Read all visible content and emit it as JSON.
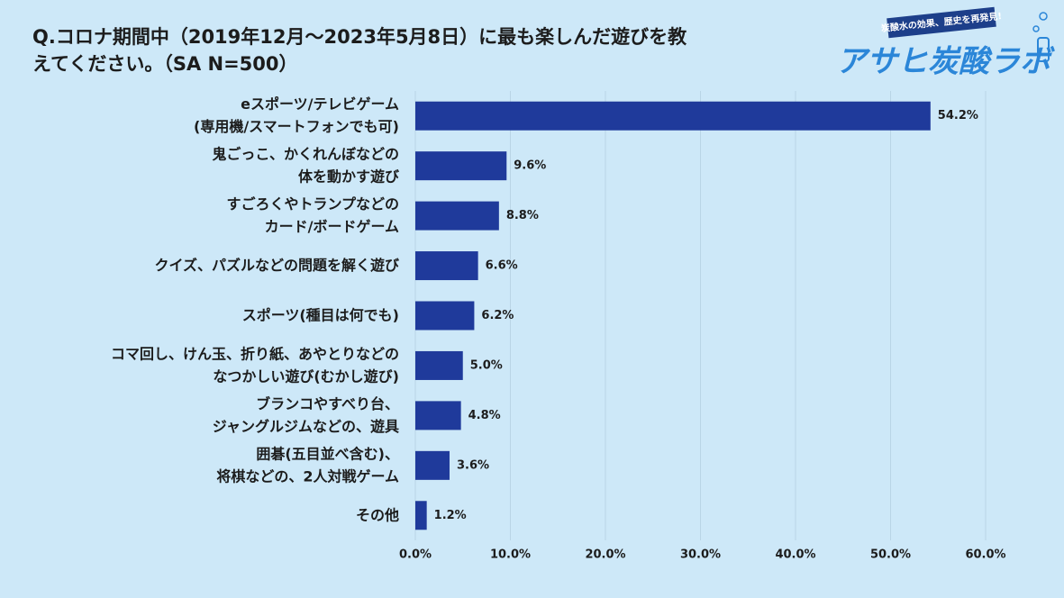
{
  "brand": {
    "name": "アサヒ炭酸ラボ",
    "tagline": "炭酸水の効果、歴史を再発見!"
  },
  "chart_data": {
    "type": "hbar",
    "title": [
      "Q.コロナ期間中（2019年12月～2023年5月8日）に最も楽しんだ遊びを教",
      "えてください。（SA N=500）"
    ],
    "categories": [
      [
        "eスポーツ/テレビゲーム",
        "(専用機/スマートフォンでも可)"
      ],
      [
        "鬼ごっこ、かくれんぼなどの",
        "体を動かす遊び"
      ],
      [
        "すごろくやトランプなどの",
        "カード/ボードゲーム"
      ],
      [
        "クイズ、パズルなどの問題を解く遊び"
      ],
      [
        "スポーツ(種目は何でも)"
      ],
      [
        "コマ回し、けん玉、折り紙、あやとりなどの",
        "なつかしい遊び(むかし遊び)"
      ],
      [
        "ブランコやすべり台、",
        "ジャングルジムなどの、遊具"
      ],
      [
        "囲碁(五目並べ含む)、",
        "将棋などの、2人対戦ゲーム"
      ],
      [
        "その他"
      ]
    ],
    "values": [
      54.2,
      9.6,
      8.8,
      6.6,
      6.2,
      5.0,
      4.8,
      3.6,
      1.2
    ],
    "value_labels": [
      "54.2%",
      "9.6%",
      "8.8%",
      "6.6%",
      "6.2%",
      "5.0%",
      "4.8%",
      "3.6%",
      "1.2%"
    ],
    "color": "#1f3a9b",
    "xlim": [
      0,
      60
    ],
    "xticks": [
      {
        "value": 0,
        "label": "0.0%"
      },
      {
        "value": 10,
        "label": "10.0%"
      },
      {
        "value": 20,
        "label": "20.0%"
      },
      {
        "value": 30,
        "label": "30.0%"
      },
      {
        "value": 40,
        "label": "40.0%"
      },
      {
        "value": 50,
        "label": "50.0%"
      },
      {
        "value": 60,
        "label": "60.0%"
      }
    ],
    "grid": true
  }
}
